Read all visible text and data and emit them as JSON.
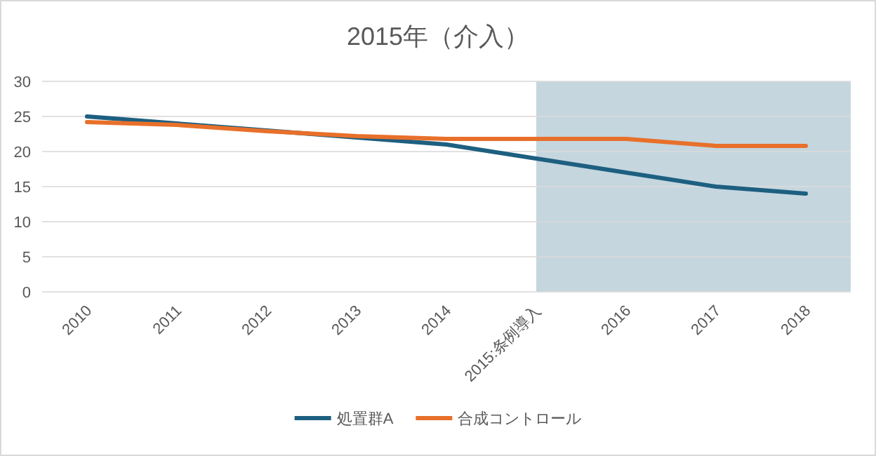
{
  "chart_data": {
    "type": "line",
    "title": "2015年（介入）",
    "categories": [
      "2010",
      "2011",
      "2012",
      "2013",
      "2014",
      "2015:条例導入",
      "2016",
      "2017",
      "2018"
    ],
    "series": [
      {
        "name": "処置群A",
        "color": "#1d5f80",
        "values": [
          25,
          24,
          23,
          22,
          21,
          19,
          17,
          15,
          14
        ]
      },
      {
        "name": "合成コントロール",
        "color": "#e8702a",
        "values": [
          24.2,
          23.8,
          22.9,
          22.2,
          21.8,
          21.8,
          21.8,
          20.8,
          20.8
        ]
      }
    ],
    "ylim": [
      0,
      30
    ],
    "yticks": [
      0,
      5,
      10,
      15,
      20,
      25,
      30
    ],
    "bands": [
      {
        "axis": "x",
        "from": "2015:条例導入",
        "to": "2018",
        "color": "#c5d6df"
      }
    ],
    "grid": "y",
    "legend": "bottom",
    "line_style": "solid",
    "marker": "none"
  }
}
